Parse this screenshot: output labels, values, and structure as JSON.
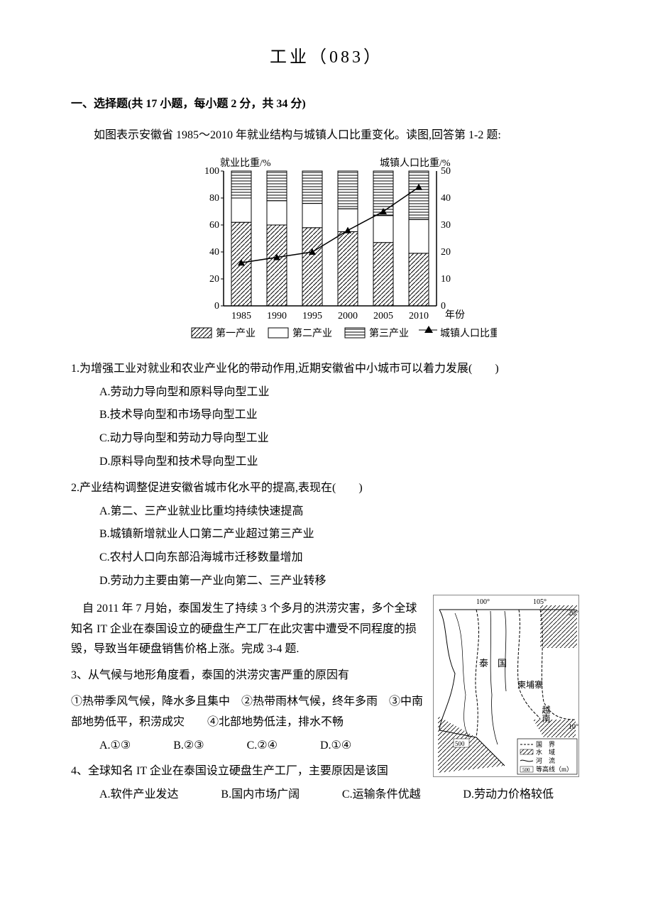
{
  "title": "工业（083）",
  "section1": {
    "header": "一、选择题(共 17 小题，每小题 2 分，共 34 分)",
    "intro1": "如图表示安徽省 1985～2010 年就业结构与城镇人口比重变化。读图,回答第 1-2 题:",
    "chart": {
      "y_left_label": "就业比重/%",
      "y_right_label": "城镇人口比重/%",
      "x_label": "年份",
      "legend": [
        "第一产业",
        "第二产业",
        "第三产业",
        "城镇人口比重"
      ],
      "legend_markers": [
        "diag",
        "blank",
        "horiz",
        "triangle"
      ],
      "years": [
        "1985",
        "1990",
        "1995",
        "2000",
        "2005",
        "2010"
      ],
      "y_left_ticks": [
        0,
        20,
        40,
        60,
        80,
        100
      ],
      "y_right_ticks": [
        0,
        10,
        20,
        30,
        40,
        50
      ],
      "bars": [
        {
          "primary": 62,
          "secondary": 18,
          "tertiary": 20
        },
        {
          "primary": 60,
          "secondary": 18,
          "tertiary": 22
        },
        {
          "primary": 58,
          "secondary": 18,
          "tertiary": 24
        },
        {
          "primary": 55,
          "secondary": 17,
          "tertiary": 28
        },
        {
          "primary": 47,
          "secondary": 20,
          "tertiary": 33
        },
        {
          "primary": 39,
          "secondary": 25,
          "tertiary": 36
        }
      ],
      "urban_line": [
        16,
        18,
        20,
        28,
        35,
        44
      ],
      "colors": {
        "axis": "#000",
        "grid": "#000",
        "fill_bg": "#fff"
      }
    },
    "q1": {
      "text": "1.为增强工业对就业和农业产业化的带动作用,近期安徽省中小城市可以着力发展(　　)",
      "options": [
        "A.劳动力导向型和原料导向型工业",
        "B.技术导向型和市场导向型工业",
        "C.动力导向型和劳动力导向型工业",
        "D.原料导向型和技术导向型工业"
      ]
    },
    "q2": {
      "text": "2.产业结构调整促进安徽省城市化水平的提高,表现在(　　)",
      "options": [
        "A.第二、三产业就业比重均持续快速提高",
        "B.城镇新增就业人口第二产业超过第三产业",
        "C.农村人口向东部沿海城市迁移数量增加",
        "D.劳动力主要由第一产业向第二、三产业转移"
      ]
    },
    "passage2": "自 2011 年 7 月始，泰国发生了持续 3 个多月的洪涝灾害，多个全球知名 IT 企业在泰国设立的硬盘生产工厂在此灾害中遭受不同程度的损毁，导致当年硬盘销售价格上涨。完成 3-4 题.",
    "q3": {
      "text": "3、从气候与地形角度看，泰国的洪涝灾害严重的原因有",
      "statements": "①热带季风气候，降水多且集中　②热带雨林气候，终年多雨　③中南部地势低平，积涝成灾　　④北部地势低洼，排水不畅",
      "options": [
        "A.①③",
        "B.②③",
        "C.②④",
        "D.①④"
      ]
    },
    "q4": {
      "text": "4、全球知名 IT 企业在泰国设立硬盘生产工厂，主要原因是该国",
      "options": [
        "A.软件产业发达",
        "B.国内市场广阔",
        "C.运输条件优越",
        "D.劳动力价格较低"
      ]
    },
    "map": {
      "lon_labels": [
        "100°",
        "105°"
      ],
      "lat_labels": [
        "20°",
        "10°"
      ],
      "places": [
        "泰　国",
        "柬埔寨",
        "越南"
      ],
      "legend": [
        "国　界",
        "水　域",
        "河　流",
        "等高线（m）"
      ],
      "contour_label": "500"
    }
  }
}
